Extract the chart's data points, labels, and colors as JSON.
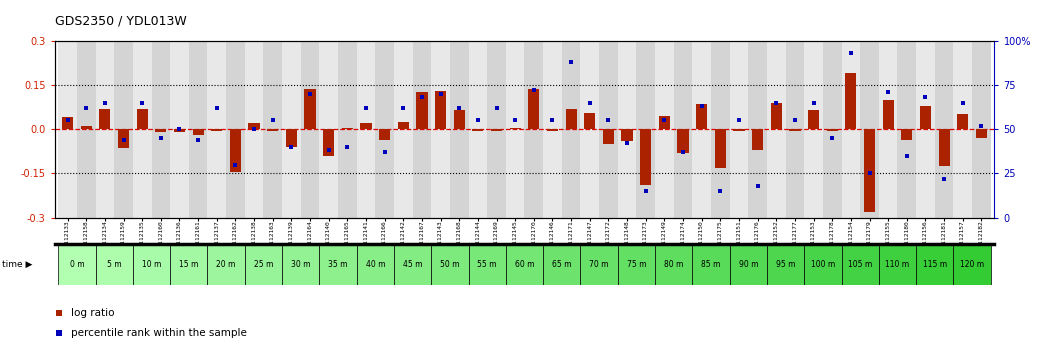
{
  "title": "GDS2350 / YDL013W",
  "ylim": [
    -0.3,
    0.3
  ],
  "yticks_left": [
    -0.3,
    -0.15,
    0.0,
    0.15,
    0.3
  ],
  "yticks_right": [
    0,
    25,
    50,
    75,
    100
  ],
  "dotted_lines": [
    -0.15,
    0.15
  ],
  "samples": [
    "GSM112133",
    "GSM112158",
    "GSM112134",
    "GSM112159",
    "GSM112135",
    "GSM112160",
    "GSM112136",
    "GSM112161",
    "GSM112137",
    "GSM112162",
    "GSM112138",
    "GSM112163",
    "GSM112139",
    "GSM112164",
    "GSM112140",
    "GSM112165",
    "GSM112141",
    "GSM112166",
    "GSM112142",
    "GSM112167",
    "GSM112143",
    "GSM112168",
    "GSM112144",
    "GSM112169",
    "GSM112145",
    "GSM112170",
    "GSM112146",
    "GSM112171",
    "GSM112147",
    "GSM112172",
    "GSM112148",
    "GSM112173",
    "GSM112149",
    "GSM112174",
    "GSM112150",
    "GSM112175",
    "GSM112151",
    "GSM112176",
    "GSM112152",
    "GSM112177",
    "GSM112153",
    "GSM112178",
    "GSM112154",
    "GSM112179",
    "GSM112155",
    "GSM112180",
    "GSM112156",
    "GSM112181",
    "GSM112157",
    "GSM112182"
  ],
  "time_labels": [
    "0 m",
    "5 m",
    "10 m",
    "15 m",
    "20 m",
    "25 m",
    "30 m",
    "35 m",
    "40 m",
    "45 m",
    "50 m",
    "55 m",
    "60 m",
    "65 m",
    "70 m",
    "75 m",
    "80 m",
    "85 m",
    "90 m",
    "95 m",
    "100 m",
    "105 m",
    "110 m",
    "115 m",
    "120 m"
  ],
  "log_ratio": [
    0.04,
    0.01,
    0.07,
    -0.065,
    0.07,
    -0.01,
    -0.01,
    -0.02,
    -0.005,
    -0.145,
    0.02,
    -0.005,
    -0.06,
    0.135,
    -0.09,
    0.005,
    0.02,
    -0.035,
    0.025,
    0.125,
    0.13,
    0.065,
    -0.005,
    -0.005,
    0.005,
    0.135,
    -0.005,
    0.07,
    0.055,
    -0.05,
    -0.04,
    -0.19,
    0.045,
    -0.08,
    0.085,
    -0.13,
    -0.005,
    -0.07,
    0.09,
    -0.005,
    0.065,
    -0.005,
    0.19,
    -0.28,
    0.1,
    -0.035,
    0.08,
    -0.125,
    0.05,
    -0.03
  ],
  "percentile": [
    55,
    62,
    65,
    44,
    65,
    45,
    50,
    44,
    62,
    30,
    50,
    55,
    40,
    70,
    38,
    40,
    62,
    37,
    62,
    68,
    70,
    62,
    55,
    62,
    55,
    72,
    55,
    88,
    65,
    55,
    42,
    15,
    55,
    37,
    63,
    15,
    55,
    18,
    65,
    55,
    65,
    45,
    93,
    25,
    71,
    35,
    68,
    22,
    65,
    52
  ],
  "bar_color": "#aa2200",
  "dot_color": "#0000bb",
  "zero_line_color": "#dd0000",
  "bg_color_green_light": "#bbffbb",
  "bg_color_green_dark": "#44cc44",
  "cell_colors": [
    "#e8e8e8",
    "#d4d4d4"
  ],
  "time_bar_color": "#99ee99"
}
